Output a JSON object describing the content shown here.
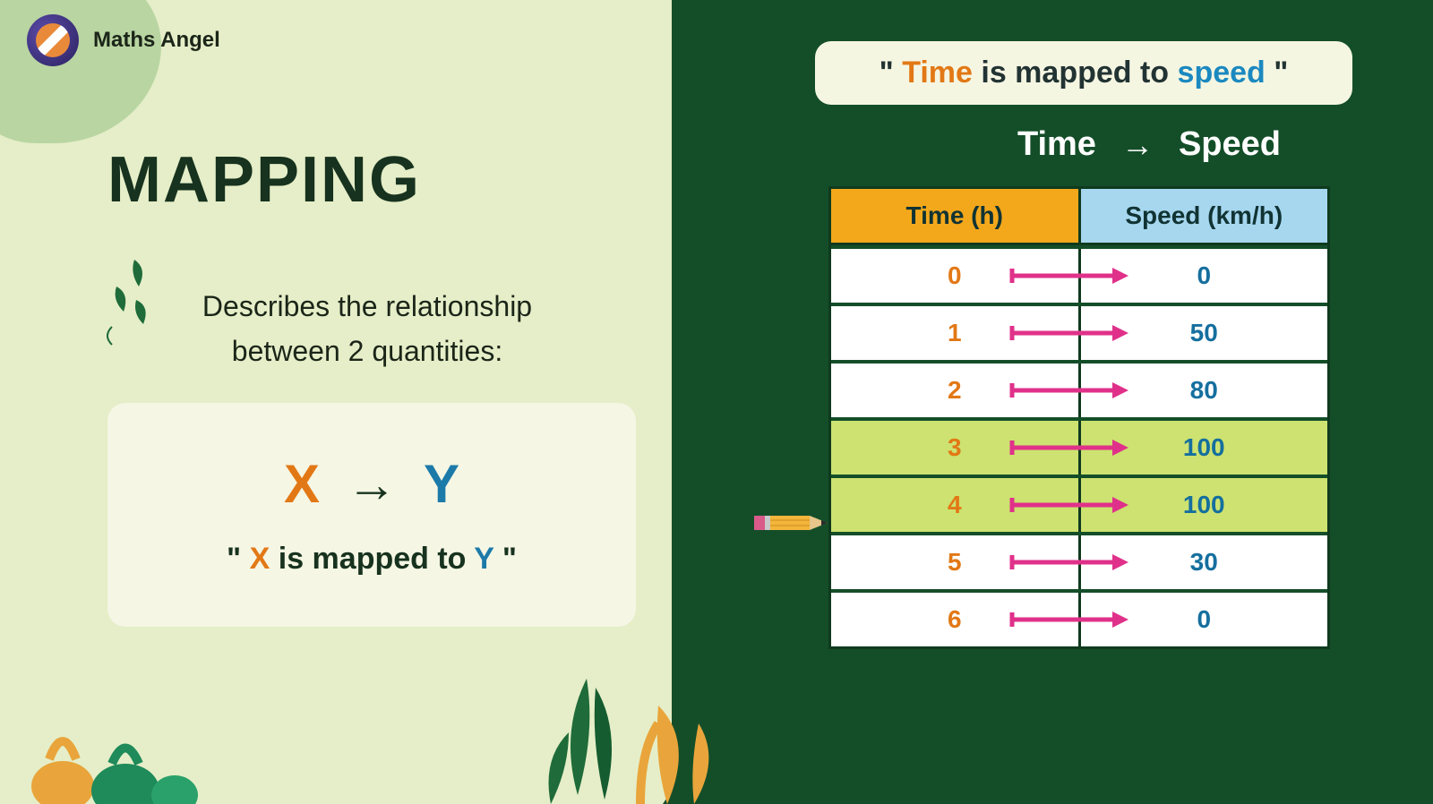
{
  "brand": {
    "name": "Maths Angel"
  },
  "left": {
    "title": "MAPPING",
    "subtitle_l1": "Describes the relationship",
    "subtitle_l2": "between 2 quantities:",
    "x": "X",
    "y": "Y",
    "quote_pre": "\" ",
    "quote_x": "X",
    "quote_mid": " is mapped to ",
    "quote_y": "Y",
    "quote_post": " \""
  },
  "callout": {
    "pre": "\" ",
    "time": "Time",
    "mid": " is mapped to ",
    "speed": "speed",
    "post": " \""
  },
  "ts": {
    "time": "Time",
    "speed": "Speed"
  },
  "table": {
    "headers": {
      "time": "Time (h)",
      "speed": "Speed (km/h)"
    },
    "header_colors": {
      "time": "#f3a81b",
      "speed": "#a6d7ef"
    },
    "arrow_color": "#e0318a",
    "highlight_color": "#cde270",
    "rows": [
      {
        "time": "0",
        "speed": "0",
        "highlight": false
      },
      {
        "time": "1",
        "speed": "50",
        "highlight": false
      },
      {
        "time": "2",
        "speed": "80",
        "highlight": false
      },
      {
        "time": "3",
        "speed": "100",
        "highlight": true
      },
      {
        "time": "4",
        "speed": "100",
        "highlight": true
      },
      {
        "time": "5",
        "speed": "30",
        "highlight": false
      },
      {
        "time": "6",
        "speed": "0",
        "highlight": false
      }
    ]
  },
  "colors": {
    "bg_light": "#e5eec8",
    "bg_dark": "#144e29",
    "orange": "#e27815",
    "blue": "#1c7aa9",
    "text_dark": "#17321e"
  }
}
